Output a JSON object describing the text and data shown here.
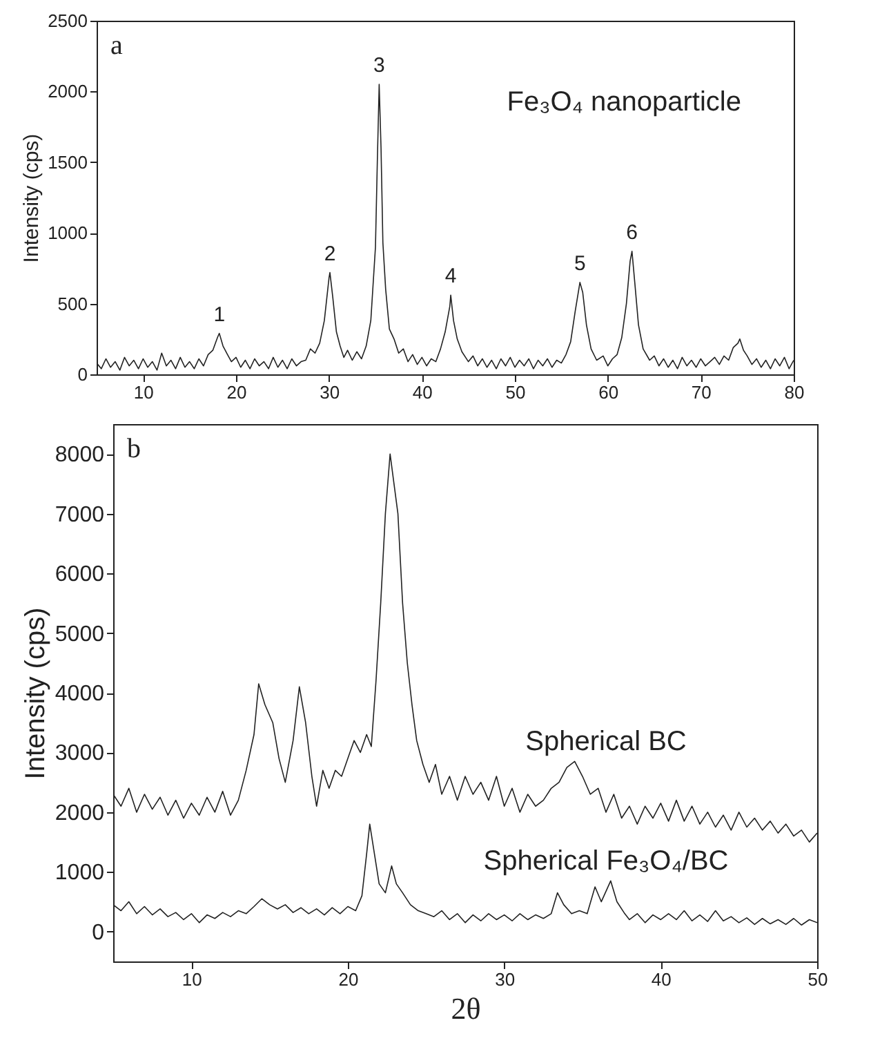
{
  "chart_data": [
    {
      "type": "line",
      "ylabel": "Intensity (cps)",
      "xlim": [
        5,
        80
      ],
      "ylim": [
        0,
        2500
      ],
      "xticks": [
        10,
        20,
        30,
        40,
        50,
        60,
        70,
        80
      ],
      "yticks": [
        0,
        500,
        1000,
        1500,
        2000,
        2500
      ],
      "annotations": [
        "a",
        "Fe₃O₄ nanoparticle",
        {
          "text": "1",
          "x": 18.2,
          "y": 290
        },
        {
          "text": "2",
          "x": 30.1,
          "y": 720
        },
        {
          "text": "3",
          "x": 35.4,
          "y": 2050
        },
        {
          "text": "4",
          "x": 43.1,
          "y": 560
        },
        {
          "text": "5",
          "x": 57,
          "y": 650
        },
        {
          "text": "6",
          "x": 62.6,
          "y": 870
        }
      ],
      "x": [
        5,
        5.5,
        6,
        6.5,
        7,
        7.5,
        8,
        8.5,
        9,
        9.5,
        10,
        10.5,
        11,
        11.5,
        12,
        12.5,
        13,
        13.5,
        14,
        14.5,
        15,
        15.5,
        16,
        16.5,
        17,
        17.5,
        18,
        18.2,
        18.6,
        19,
        19.5,
        20,
        20.5,
        21,
        21.5,
        22,
        22.5,
        23,
        23.5,
        24,
        24.5,
        25,
        25.5,
        26,
        26.5,
        27,
        27.5,
        28,
        28.5,
        29,
        29.5,
        30,
        30.1,
        30.4,
        30.8,
        31.2,
        31.6,
        32,
        32.5,
        33,
        33.5,
        34,
        34.5,
        35,
        35.2,
        35.4,
        35.6,
        35.8,
        36.1,
        36.5,
        37,
        37.5,
        38,
        38.5,
        39,
        39.5,
        40,
        40.5,
        41,
        41.5,
        42,
        42.5,
        43,
        43.1,
        43.4,
        43.8,
        44.3,
        45,
        45.5,
        46,
        46.5,
        47,
        47.5,
        48,
        48.5,
        49,
        49.5,
        50,
        50.5,
        51,
        51.5,
        52,
        52.5,
        53,
        53.5,
        54,
        54.5,
        55,
        55.5,
        56,
        56.5,
        57,
        57.3,
        57.7,
        58.2,
        58.8,
        59.5,
        60,
        60.5,
        61,
        61.5,
        62,
        62.4,
        62.6,
        62.9,
        63.3,
        63.8,
        64.5,
        65,
        65.5,
        66,
        66.5,
        67,
        67.5,
        68,
        68.5,
        69,
        69.5,
        70,
        70.5,
        71,
        71.5,
        72,
        72.5,
        73,
        73.5,
        74,
        74.2,
        74.6,
        75,
        75.5,
        76,
        76.5,
        77,
        77.5,
        78,
        78.5,
        79,
        79.5,
        80
      ],
      "series": [
        {
          "color": "#222222",
          "values": [
            80,
            40,
            110,
            50,
            90,
            30,
            120,
            60,
            100,
            40,
            110,
            50,
            90,
            30,
            150,
            60,
            100,
            40,
            120,
            50,
            90,
            40,
            110,
            60,
            140,
            170,
            260,
            290,
            200,
            150,
            90,
            120,
            50,
            100,
            40,
            110,
            60,
            90,
            40,
            120,
            50,
            100,
            40,
            110,
            60,
            90,
            100,
            180,
            150,
            220,
            380,
            680,
            720,
            550,
            300,
            200,
            120,
            170,
            100,
            160,
            110,
            200,
            380,
            900,
            1500,
            2050,
            1600,
            930,
            600,
            320,
            250,
            150,
            180,
            90,
            140,
            70,
            120,
            60,
            110,
            90,
            180,
            300,
            480,
            560,
            380,
            250,
            160,
            90,
            130,
            60,
            110,
            50,
            100,
            40,
            110,
            60,
            120,
            50,
            100,
            60,
            110,
            40,
            100,
            60,
            110,
            50,
            100,
            80,
            140,
            230,
            450,
            650,
            580,
            350,
            180,
            100,
            130,
            60,
            110,
            140,
            260,
            500,
            800,
            870,
            650,
            350,
            180,
            100,
            130,
            60,
            110,
            50,
            100,
            40,
            120,
            60,
            100,
            50,
            110,
            60,
            90,
            120,
            70,
            130,
            100,
            190,
            220,
            250,
            170,
            130,
            70,
            110,
            50,
            100,
            40,
            110,
            60,
            120,
            40,
            100
          ]
        }
      ]
    },
    {
      "type": "line",
      "xlabel": "2θ",
      "ylabel": "Intensity (cps)",
      "xlim": [
        5,
        50
      ],
      "ylim": [
        -500,
        8500
      ],
      "xticks": [
        10,
        20,
        30,
        40,
        50
      ],
      "yticks": [
        0,
        1000,
        2000,
        3000,
        4000,
        5000,
        6000,
        7000,
        8000
      ],
      "annotations": [
        "b"
      ],
      "series": [
        {
          "name": "Spherical BC",
          "color": "#222222",
          "x": [
            5,
            5.5,
            6,
            6.5,
            7,
            7.5,
            8,
            8.5,
            9,
            9.5,
            10,
            10.5,
            11,
            11.5,
            12,
            12.5,
            13,
            13.5,
            14,
            14.3,
            14.7,
            15.2,
            15.6,
            16,
            16.5,
            16.9,
            17.3,
            17.7,
            18,
            18.4,
            18.8,
            19.2,
            19.6,
            20,
            20.4,
            20.8,
            21.2,
            21.5,
            21.8,
            22.1,
            22.4,
            22.7,
            22.9,
            23.2,
            23.5,
            23.8,
            24.1,
            24.4,
            24.8,
            25.2,
            25.6,
            26,
            26.5,
            27,
            27.5,
            28,
            28.5,
            29,
            29.5,
            30,
            30.5,
            31,
            31.5,
            32,
            32.5,
            33,
            33.5,
            34,
            34.5,
            35,
            35.5,
            36,
            36.5,
            37,
            37.5,
            38,
            38.5,
            39,
            39.5,
            40,
            40.5,
            41,
            41.5,
            42,
            42.5,
            43,
            43.5,
            44,
            44.5,
            45,
            45.5,
            46,
            46.5,
            47,
            47.5,
            48,
            48.5,
            49,
            49.5,
            50
          ],
          "values": [
            2300,
            2100,
            2400,
            2000,
            2300,
            2050,
            2250,
            1950,
            2200,
            1900,
            2150,
            1950,
            2250,
            2000,
            2350,
            1950,
            2200,
            2700,
            3300,
            4150,
            3800,
            3500,
            2900,
            2500,
            3200,
            4100,
            3500,
            2600,
            2100,
            2700,
            2400,
            2700,
            2600,
            2900,
            3200,
            3000,
            3300,
            3100,
            4200,
            5500,
            7000,
            8000,
            7600,
            7000,
            5500,
            4500,
            3800,
            3200,
            2800,
            2500,
            2800,
            2300,
            2600,
            2200,
            2600,
            2300,
            2500,
            2200,
            2600,
            2100,
            2400,
            2000,
            2300,
            2100,
            2200,
            2400,
            2500,
            2750,
            2850,
            2600,
            2300,
            2400,
            2000,
            2300,
            1900,
            2100,
            1800,
            2100,
            1900,
            2150,
            1850,
            2200,
            1850,
            2100,
            1800,
            2000,
            1750,
            1950,
            1700,
            2000,
            1750,
            1900,
            1700,
            1850,
            1650,
            1800,
            1600,
            1700,
            1500,
            1650
          ]
        },
        {
          "name": "Spherical Fe₃O₄/BC",
          "color": "#222222",
          "x": [
            5,
            5.5,
            6,
            6.5,
            7,
            7.5,
            8,
            8.5,
            9,
            9.5,
            10,
            10.5,
            11,
            11.5,
            12,
            12.5,
            13,
            13.5,
            14,
            14.5,
            15,
            15.5,
            16,
            16.5,
            17,
            17.5,
            18,
            18.5,
            19,
            19.5,
            20,
            20.5,
            20.9,
            21.2,
            21.4,
            21.7,
            22,
            22.4,
            22.8,
            23.1,
            23.5,
            24,
            24.5,
            25,
            25.5,
            26,
            26.5,
            27,
            27.5,
            28,
            28.5,
            29,
            29.5,
            30,
            30.5,
            31,
            31.5,
            32,
            32.5,
            33,
            33.4,
            33.8,
            34.3,
            34.8,
            35.3,
            35.8,
            36.2,
            36.8,
            37.2,
            37.7,
            38,
            38.5,
            39,
            39.5,
            40,
            40.5,
            41,
            41.5,
            42,
            42.5,
            43,
            43.5,
            44,
            44.5,
            45,
            45.5,
            46,
            46.5,
            47,
            47.5,
            48,
            48.5,
            49,
            49.5,
            50
          ],
          "values": [
            450,
            350,
            500,
            300,
            420,
            280,
            380,
            250,
            320,
            200,
            300,
            150,
            280,
            220,
            320,
            250,
            350,
            300,
            420,
            550,
            450,
            380,
            450,
            320,
            400,
            300,
            380,
            280,
            400,
            300,
            420,
            350,
            600,
            1300,
            1800,
            1300,
            800,
            650,
            1100,
            800,
            650,
            450,
            350,
            300,
            250,
            350,
            200,
            300,
            150,
            280,
            180,
            300,
            200,
            280,
            180,
            300,
            200,
            280,
            220,
            300,
            650,
            450,
            300,
            350,
            300,
            750,
            500,
            850,
            500,
            300,
            200,
            300,
            150,
            280,
            200,
            300,
            200,
            350,
            180,
            280,
            170,
            350,
            180,
            250,
            150,
            230,
            120,
            220,
            130,
            200,
            120,
            220,
            110,
            200,
            150
          ]
        }
      ]
    }
  ]
}
